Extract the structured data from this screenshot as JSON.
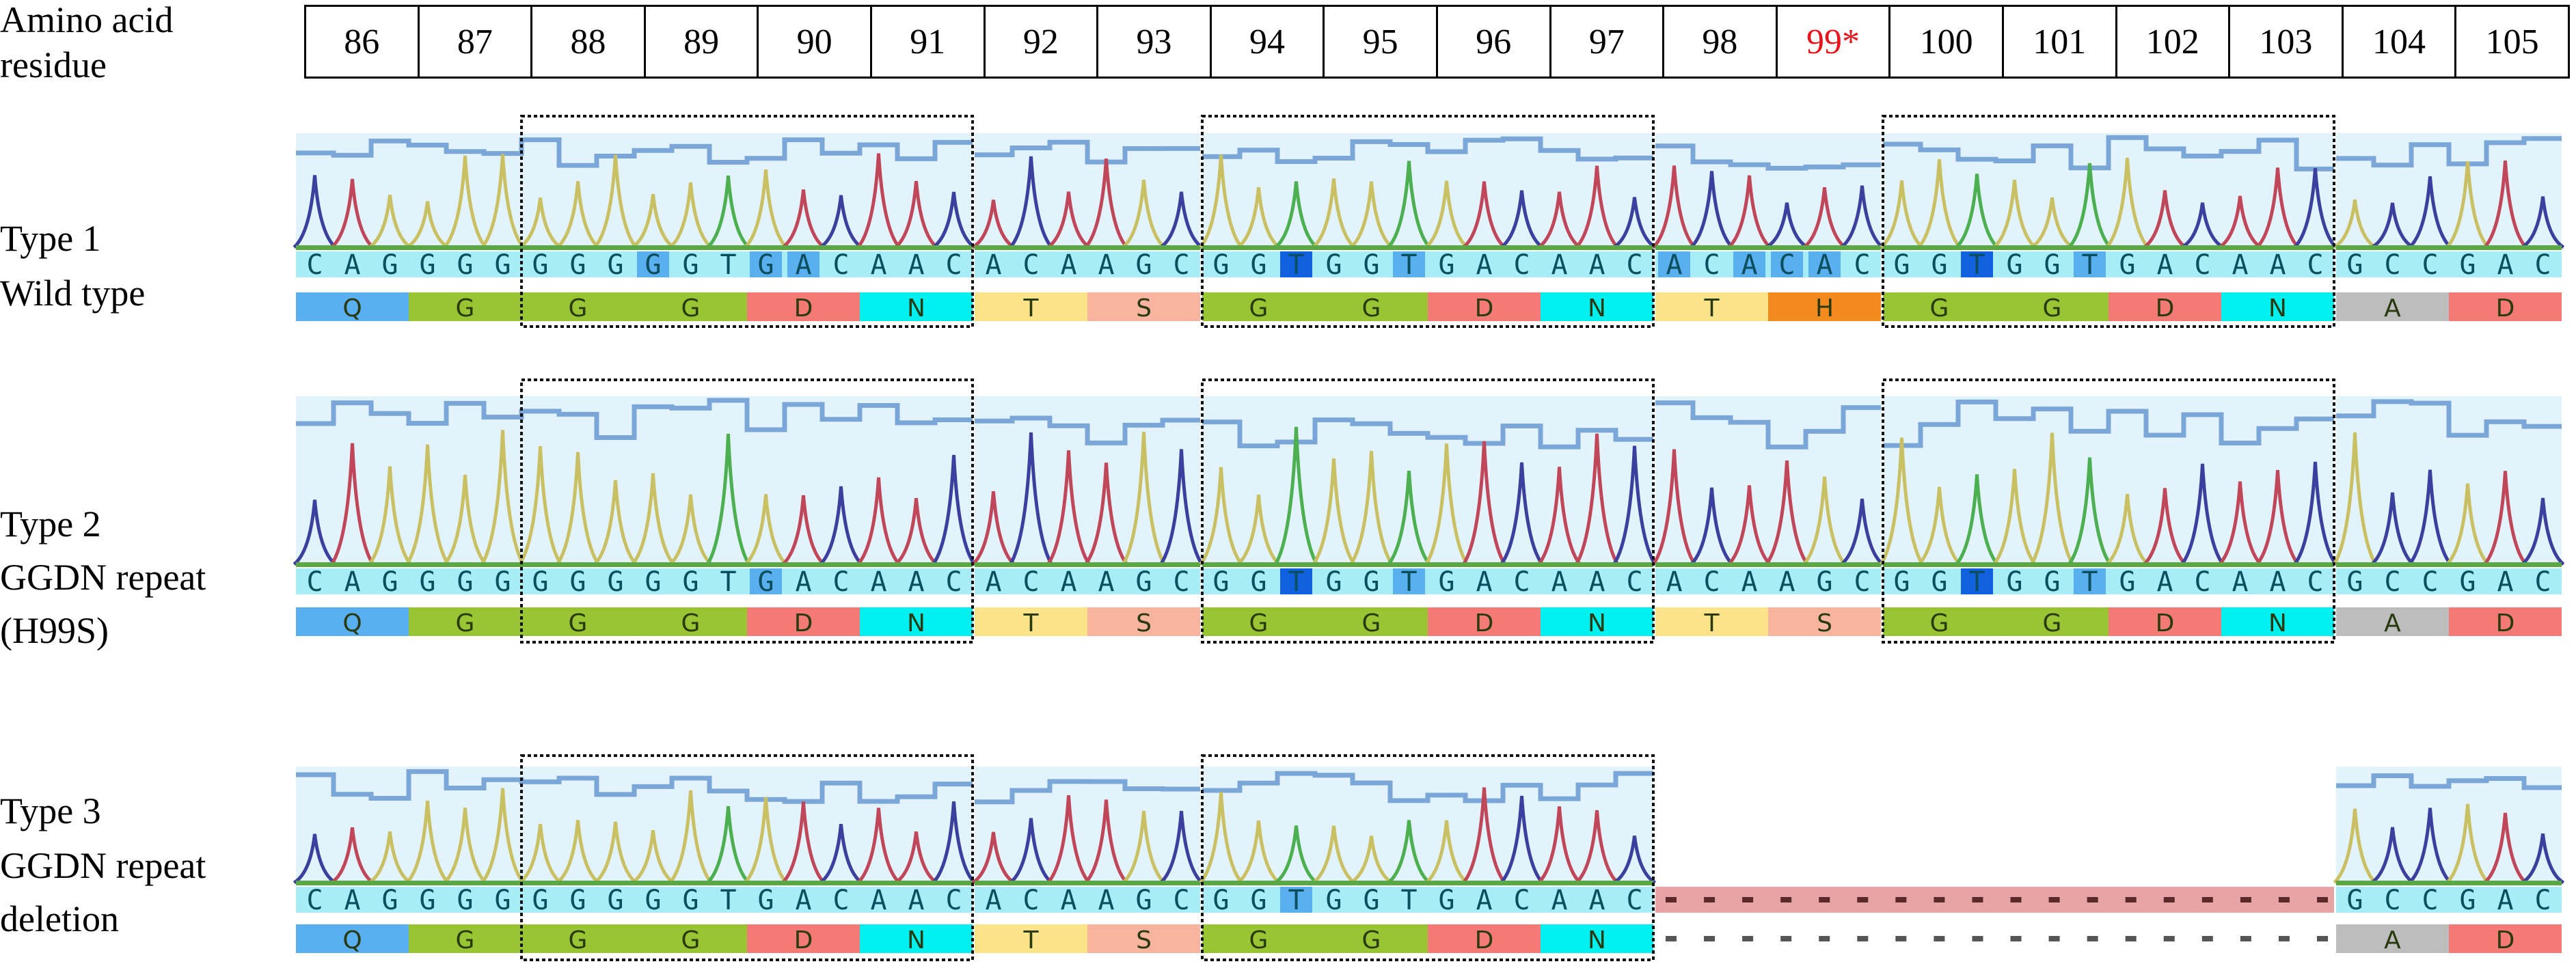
{
  "header": {
    "label_line1": "Amino acid",
    "label_line2": "residue",
    "residues": [
      "86",
      "87",
      "88",
      "89",
      "90",
      "91",
      "92",
      "93",
      "94",
      "95",
      "96",
      "97",
      "98",
      "99*",
      "100",
      "101",
      "102",
      "103",
      "104",
      "105"
    ],
    "highlight_residue_color": "#e8141c"
  },
  "colors": {
    "base_A": "#c0475a",
    "base_C": "#3d3f9e",
    "base_G": "#c9c063",
    "base_T": "#4caf50",
    "aa_Q": "#5aaff0",
    "aa_G": "#99c535",
    "aa_D": "#f47a75",
    "aa_N": "#00f0f0",
    "aa_T": "#fbe38a",
    "aa_S": "#f9b4a0",
    "aa_H": "#f28a1e",
    "aa_A": "#bdbdbd",
    "nt_strip": "#a8ecf8",
    "chrom_bg": "#e3f3fb",
    "quality_line": "#7ba7d8",
    "deletion": "#e8a4a4"
  },
  "rows": [
    {
      "label": [
        "Type 1",
        "Wild type"
      ],
      "segments": [
        {
          "nt": "CAGGGGGGGGGTGACAAC",
          "aa": [
            "Q",
            "G",
            "G",
            "G",
            "D",
            "N"
          ],
          "hl": {
            "9": 1,
            "12": 1,
            "13": 1
          }
        },
        {
          "nt": "ACAAGC",
          "aa": [
            "T",
            "S"
          ],
          "hl": {}
        },
        {
          "nt": "GGTGGTGACAAC",
          "aa": [
            "G",
            "G",
            "D",
            "N"
          ],
          "hl": {
            "2": 2,
            "5": 1
          }
        },
        {
          "nt": "ACACAC",
          "aa": [
            "T",
            "H"
          ],
          "hl": {
            "0": 1,
            "2": 1,
            "3": 1,
            "4": 1
          }
        },
        {
          "nt": "GGTGGTGACAAC",
          "aa": [
            "G",
            "G",
            "D",
            "N"
          ],
          "hl": {
            "2": 2,
            "5": 1
          }
        },
        {
          "nt": "GCCGAC",
          "aa": [
            "A",
            "D"
          ],
          "hl": {}
        }
      ]
    },
    {
      "label": [
        "Type 2",
        "GGDN repeat",
        "(H99S)"
      ],
      "segments": [
        {
          "nt": "CAGGGGGGGGGTGACAAC",
          "aa": [
            "Q",
            "G",
            "G",
            "G",
            "D",
            "N"
          ],
          "hl": {
            "12": 1
          }
        },
        {
          "nt": "ACAAGC",
          "aa": [
            "T",
            "S"
          ],
          "hl": {}
        },
        {
          "nt": "GGTGGTGACAAC",
          "aa": [
            "G",
            "G",
            "D",
            "N"
          ],
          "hl": {
            "2": 2,
            "5": 1
          }
        },
        {
          "nt": "ACAAGC",
          "aa": [
            "T",
            "S"
          ],
          "hl": {}
        },
        {
          "nt": "GGTGGTGACAAC",
          "aa": [
            "G",
            "G",
            "D",
            "N"
          ],
          "hl": {
            "2": 2,
            "5": 1
          }
        },
        {
          "nt": "GCCGAC",
          "aa": [
            "A",
            "D"
          ],
          "hl": {}
        }
      ]
    },
    {
      "label": [
        "Type 3",
        "GGDN repeat",
        "deletion"
      ],
      "segments": [
        {
          "nt": "CAGGGGGGGGGTGACAAC",
          "aa": [
            "Q",
            "G",
            "G",
            "G",
            "D",
            "N"
          ],
          "hl": {}
        },
        {
          "nt": "ACAAGC",
          "aa": [
            "T",
            "S"
          ],
          "hl": {}
        },
        {
          "nt": "GGTGGTGACAAC",
          "aa": [
            "G",
            "G",
            "D",
            "N"
          ],
          "hl": {
            "2": 1
          }
        },
        {
          "deleted": true,
          "nt": "------------------",
          "aa": "------------------"
        },
        null,
        {
          "nt": "GCCGAC",
          "aa": [
            "A",
            "D"
          ],
          "hl": {}
        }
      ]
    }
  ]
}
